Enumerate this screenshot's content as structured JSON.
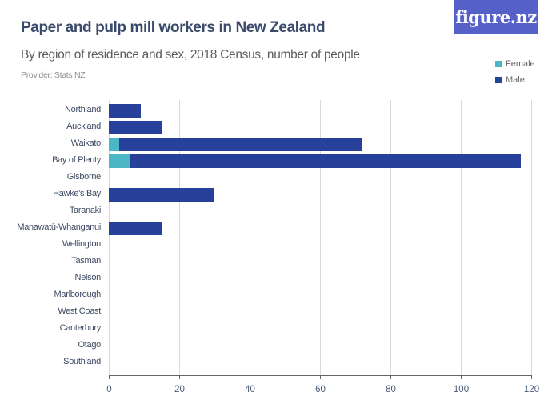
{
  "header": {
    "title": "Paper and pulp mill workers in New Zealand",
    "subtitle": "By region of residence and sex, 2018 Census, number of people",
    "provider": "Provider: Stats NZ",
    "logo_text": "figure.nz"
  },
  "legend": [
    {
      "label": "Female",
      "color": "#4bb6c4"
    },
    {
      "label": "Male",
      "color": "#27409a"
    }
  ],
  "colors": {
    "female": "#4bb6c4",
    "male": "#27409a",
    "logo_bg": "#5561c9",
    "gridline": "#d9d9d9",
    "title": "#3a4a6b"
  },
  "axis": {
    "ticks": [
      "0",
      "20",
      "40",
      "60",
      "80",
      "100",
      "120"
    ]
  },
  "chart_data": {
    "type": "bar",
    "orientation": "horizontal",
    "stacked": true,
    "title": "Paper and pulp mill workers in New Zealand",
    "subtitle": "By region of residence and sex, 2018 Census, number of people",
    "xlabel": "",
    "ylabel": "",
    "xlim": [
      0,
      120
    ],
    "xticks": [
      0,
      20,
      40,
      60,
      80,
      100,
      120
    ],
    "grid": true,
    "legend_position": "top-right",
    "categories": [
      "Northland",
      "Auckland",
      "Waikato",
      "Bay of Plenty",
      "Gisborne",
      "Hawke's Bay",
      "Taranaki",
      "Manawatū-Whanganui",
      "Wellington",
      "Tasman",
      "Nelson",
      "Marlborough",
      "West Coast",
      "Canterbury",
      "Otago",
      "Southland"
    ],
    "series": [
      {
        "name": "Female",
        "color": "#4bb6c4",
        "values": [
          0,
          0,
          3,
          6,
          0,
          0,
          0,
          0,
          0,
          0,
          0,
          0,
          0,
          0,
          0,
          0
        ]
      },
      {
        "name": "Male",
        "color": "#27409a",
        "values": [
          9,
          15,
          69,
          111,
          0,
          30,
          0,
          15,
          0,
          0,
          0,
          0,
          0,
          0,
          0,
          0
        ]
      }
    ]
  }
}
